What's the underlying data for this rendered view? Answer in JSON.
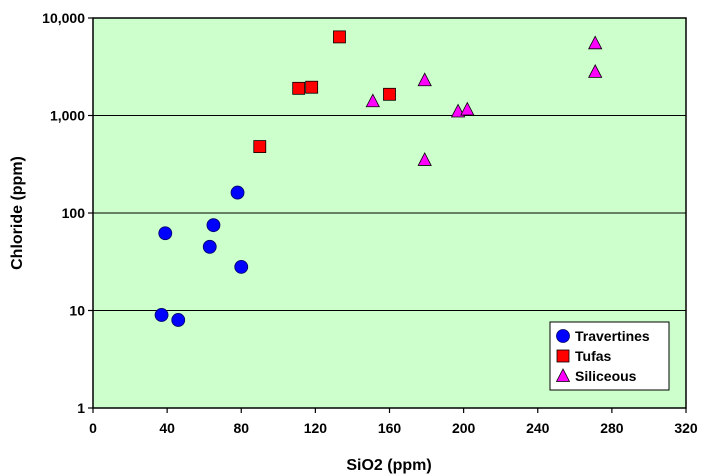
{
  "chart_data": {
    "type": "scatter",
    "title": "",
    "xlabel": "SiO2 (ppm)",
    "ylabel": "Chloride (ppm)",
    "xlim": [
      0,
      320
    ],
    "ylim": [
      1,
      10000
    ],
    "yscale": "log",
    "x_ticks": [
      0,
      40,
      80,
      120,
      160,
      200,
      240,
      280,
      320
    ],
    "x_tick_labels": [
      "0",
      "40",
      "80",
      "120",
      "160",
      "200",
      "240",
      "280",
      "320"
    ],
    "y_ticks": [
      1,
      10,
      100,
      1000,
      10000
    ],
    "y_tick_labels": [
      "1",
      "10",
      "100",
      "1,000",
      "10,000"
    ],
    "grid": "horizontal major lines",
    "plot_background": "#ccffcc",
    "legend_position": "bottom-right",
    "series": [
      {
        "name": "Travertines",
        "marker": "circle",
        "color": "#0000ff",
        "points": [
          {
            "x": 37,
            "y": 9
          },
          {
            "x": 39,
            "y": 62
          },
          {
            "x": 46,
            "y": 8
          },
          {
            "x": 63,
            "y": 45
          },
          {
            "x": 65,
            "y": 75
          },
          {
            "x": 78,
            "y": 162
          },
          {
            "x": 80,
            "y": 28
          }
        ]
      },
      {
        "name": "Tufas",
        "marker": "square",
        "color": "#ff0000",
        "points": [
          {
            "x": 90,
            "y": 480
          },
          {
            "x": 111,
            "y": 1900
          },
          {
            "x": 118,
            "y": 1950
          },
          {
            "x": 133,
            "y": 6400
          },
          {
            "x": 160,
            "y": 1650
          }
        ]
      },
      {
        "name": "Siliceous",
        "marker": "triangle",
        "color": "#ff00ff",
        "points": [
          {
            "x": 151,
            "y": 1400
          },
          {
            "x": 179,
            "y": 2300
          },
          {
            "x": 179,
            "y": 350
          },
          {
            "x": 197,
            "y": 1100
          },
          {
            "x": 202,
            "y": 1150
          },
          {
            "x": 271,
            "y": 5500
          },
          {
            "x": 271,
            "y": 2800
          }
        ]
      }
    ]
  }
}
